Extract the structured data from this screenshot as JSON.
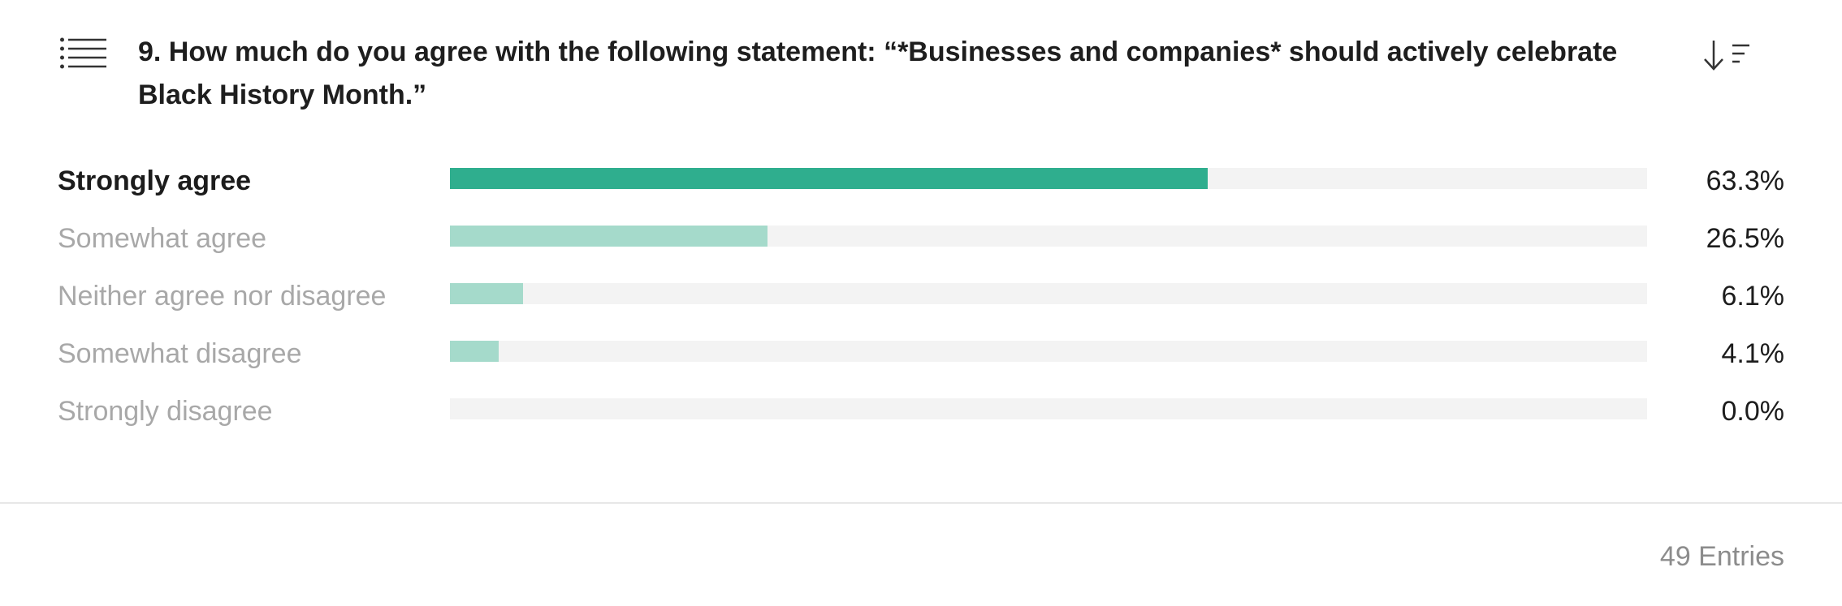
{
  "question": {
    "text": "9. How much do you agree with the following statement: “*Businesses and companies* should actively celebrate Black History Month.”"
  },
  "icons": {
    "menu": "list-menu-icon",
    "sort": "sort-descending-icon"
  },
  "colors": {
    "top_bar": "#2fae8e",
    "other_bars": "#a5dacb",
    "track": "#f3f3f3"
  },
  "results": [
    {
      "label": "Strongly agree",
      "percent": 63.3,
      "value_text": "63.3%"
    },
    {
      "label": "Somewhat agree",
      "percent": 26.5,
      "value_text": "26.5%"
    },
    {
      "label": "Neither agree nor disagree",
      "percent": 6.1,
      "value_text": "6.1%"
    },
    {
      "label": "Somewhat disagree",
      "percent": 4.1,
      "value_text": "4.1%"
    },
    {
      "label": "Strongly disagree",
      "percent": 0.0,
      "value_text": "0.0%"
    }
  ],
  "footer": {
    "entries": "49 Entries"
  }
}
